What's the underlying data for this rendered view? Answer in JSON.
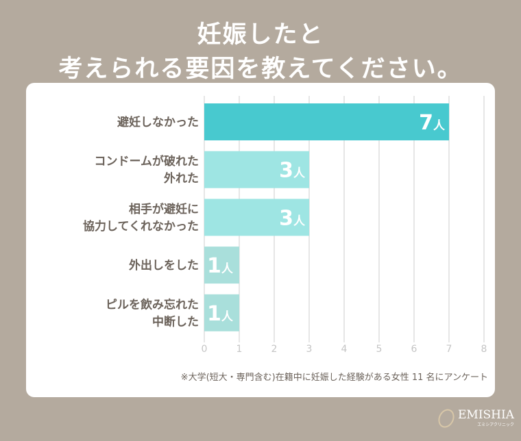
{
  "title": [
    "妊娠したと",
    "考えられる要因を教えてください。"
  ],
  "chart_data": {
    "type": "bar",
    "orientation": "horizontal",
    "categories": [
      [
        "避妊しなかった"
      ],
      [
        "コンドームが破れた",
        "外れた"
      ],
      [
        "相手が避妊に",
        "協力してくれなかった"
      ],
      [
        "外出しをした"
      ],
      [
        "ピルを飲み忘れた",
        "中断した"
      ]
    ],
    "values": [
      7,
      3,
      3,
      1,
      1
    ],
    "data_labels": [
      "7",
      "3",
      "3",
      "1",
      "1"
    ],
    "unit": "人",
    "xlim": [
      0,
      8
    ],
    "xticks": [
      "0",
      "1",
      "2",
      "3",
      "4",
      "5",
      "6",
      "7",
      "8"
    ],
    "grid": true,
    "colors": [
      "#48c9cf",
      "#9ee5e3",
      "#9ee5e3",
      "#a9dfdb",
      "#a9dfdb"
    ]
  },
  "note": "※大学(短大・専門含む)在籍中に妊娠した経験がある女性 11 名にアンケート",
  "brand": {
    "name": "EMISHIA",
    "sub": "エミシアクリニック"
  }
}
